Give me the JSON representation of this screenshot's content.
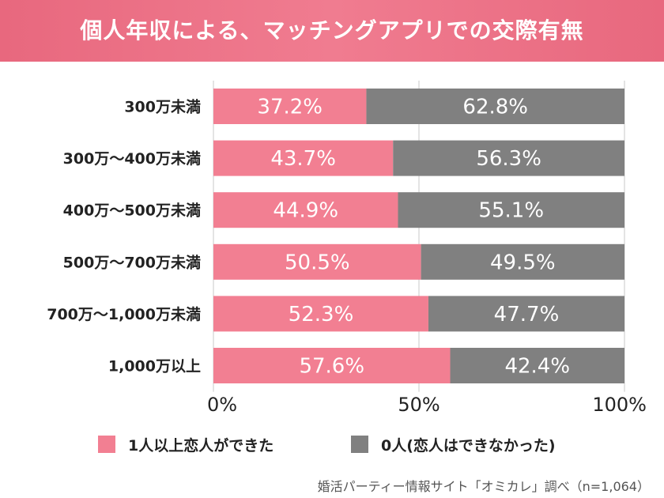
{
  "title": "個人年収による、マッチングアプリでの交際有無",
  "source": "婚活パーティー情報サイト「オミカレ」調べ（n=1,064）",
  "colors": {
    "banner": "#ec7184",
    "series_yes": "#f27f92",
    "series_no": "#808080",
    "grid": "#c8c8c8"
  },
  "chart_data": {
    "type": "bar",
    "orientation": "horizontal",
    "stacked": true,
    "title": "個人年収による、マッチングアプリでの交際有無",
    "categories": [
      "300万未満",
      "300万～400万未満",
      "400万～500万未満",
      "500万～700万未満",
      "700万～1,000万未満",
      "1,000万以上"
    ],
    "series": [
      {
        "name": "1人以上恋人ができた",
        "color": "#f27f92",
        "values": [
          37.2,
          43.7,
          44.9,
          50.5,
          52.3,
          57.6
        ],
        "labels": [
          "37.2%",
          "43.7%",
          "44.9%",
          "50.5%",
          "52.3%",
          "57.6%"
        ]
      },
      {
        "name": "0人(恋人はできなかった)",
        "color": "#808080",
        "values": [
          62.8,
          56.3,
          55.1,
          49.5,
          47.7,
          42.4
        ],
        "labels": [
          "62.8%",
          "56.3%",
          "55.1%",
          "49.5%",
          "47.7%",
          "42.4%"
        ]
      }
    ],
    "xlim": [
      0,
      100
    ],
    "xticks": [
      0,
      50,
      100
    ],
    "xtick_labels": [
      "0%",
      "50%",
      "100%"
    ],
    "grid": true,
    "legend_position": "bottom"
  }
}
